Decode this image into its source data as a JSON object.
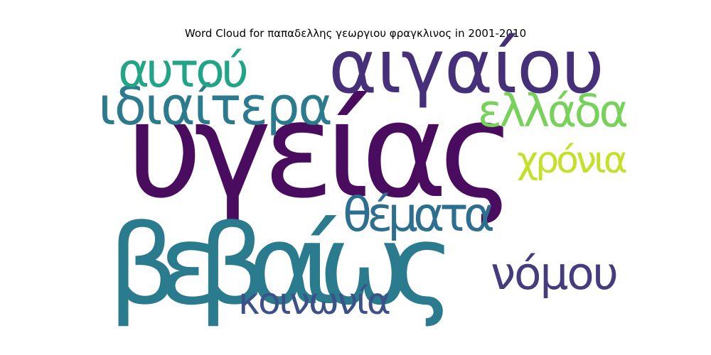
{
  "chart_data": {
    "type": "word_cloud",
    "title": "Word Cloud for παπαδελλης γεωργιου φραγκλινος in 2001-2010",
    "words": [
      {
        "text": "υγείας",
        "weight": 1.0,
        "color": "#4a0c5e"
      },
      {
        "text": "βεβαίως",
        "weight": 0.84,
        "color": "#2a7b8e"
      },
      {
        "text": "αιγαίου",
        "weight": 0.56,
        "color": "#46307a"
      },
      {
        "text": "ιδιαίτερα",
        "weight": 0.4,
        "color": "#2c7a8d"
      },
      {
        "text": "αυτού",
        "weight": 0.36,
        "color": "#21a586"
      },
      {
        "text": "θέματα",
        "weight": 0.36,
        "color": "#2d6f8e"
      },
      {
        "text": "ελλάδα",
        "weight": 0.34,
        "color": "#77d15a"
      },
      {
        "text": "νόμου",
        "weight": 0.34,
        "color": "#453c7e"
      },
      {
        "text": "χρόνια",
        "weight": 0.28,
        "color": "#c6e02a"
      },
      {
        "text": "κοινωνία",
        "weight": 0.28,
        "color": "#3d5189"
      }
    ]
  }
}
